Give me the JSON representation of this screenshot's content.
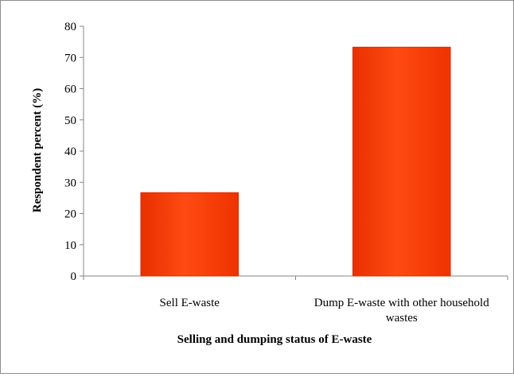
{
  "chart_data": {
    "type": "bar",
    "categories": [
      "Sell E-waste",
      "Dump E-waste with other household wastes"
    ],
    "category_label_lines": [
      [
        "Sell E-waste"
      ],
      [
        "Dump E-waste with other household",
        "wastes"
      ]
    ],
    "values": [
      26.7,
      73.3
    ],
    "xlabel": "Selling and dumping status of E-waste",
    "ylabel": "Respondent percent (%)",
    "ylim": [
      0,
      80
    ],
    "yticks": [
      0,
      10,
      20,
      30,
      40,
      50,
      60,
      70,
      80
    ],
    "grid": false,
    "legend": "none",
    "bar_color": "#ff3a05",
    "bar_edge_color": "#e02a00"
  }
}
